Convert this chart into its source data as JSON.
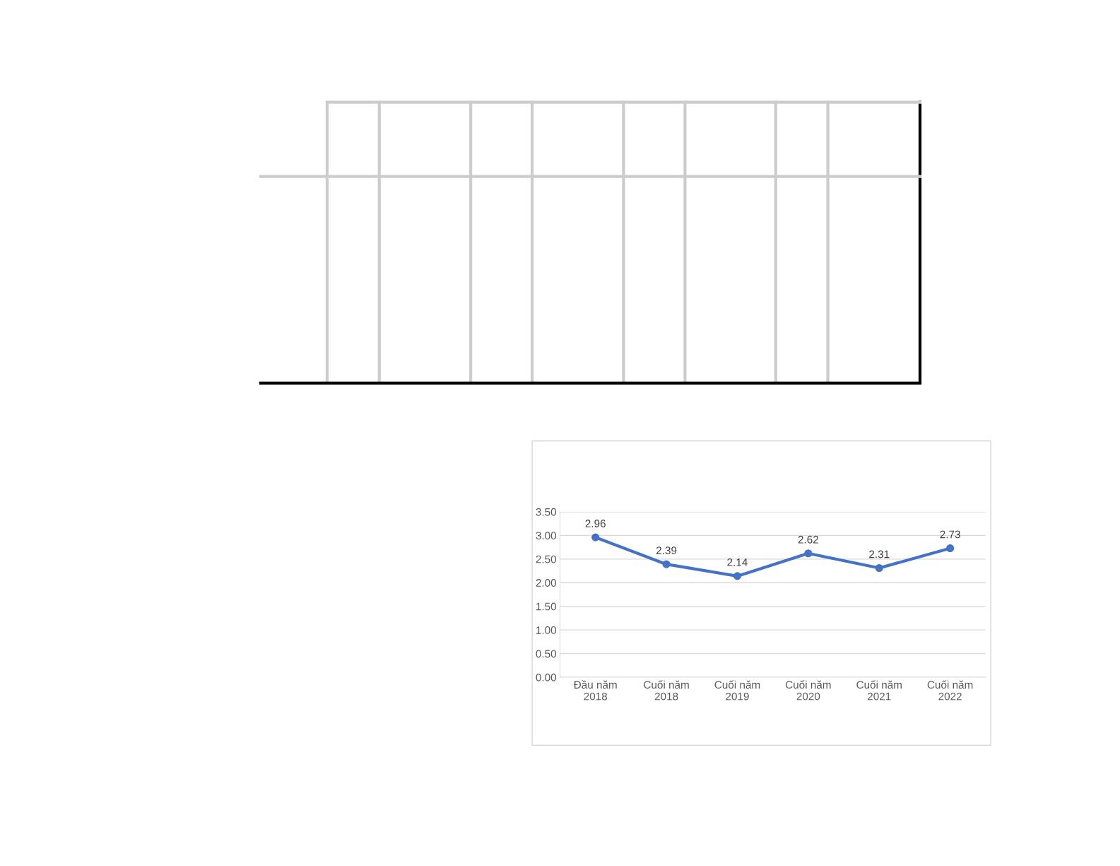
{
  "chart_data": {
    "type": "line",
    "categories": [
      "Đầu năm\n2018",
      "Cuối năm\n2018",
      "Cuối năm\n2019",
      "Cuối năm\n2020",
      "Cuối năm\n2021",
      "Cuối năm\n2022"
    ],
    "series": [
      {
        "color": "#4472c4",
        "values": [
          2.96,
          2.39,
          2.14,
          2.62,
          2.31,
          2.73
        ]
      }
    ],
    "ylim": [
      0,
      3.5
    ],
    "yticks": [
      {
        "value": 0,
        "label": "0.00"
      },
      {
        "value": 0.5,
        "label": "0.50"
      },
      {
        "value": 1,
        "label": "1.00"
      },
      {
        "value": 1.5,
        "label": "1.50"
      },
      {
        "value": 2,
        "label": "2.00"
      },
      {
        "value": 2.5,
        "label": "2.50"
      },
      {
        "value": 3,
        "label": "3.00"
      },
      {
        "value": 3.5,
        "label": "3.50"
      }
    ],
    "grid": "y",
    "marker": "circle",
    "line_style": "solid",
    "data_labels": true
  }
}
